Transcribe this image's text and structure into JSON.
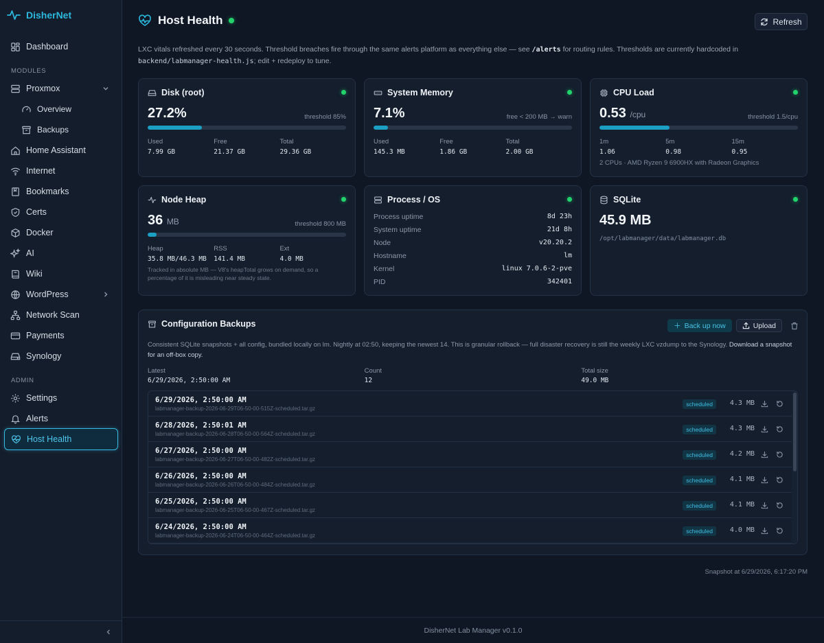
{
  "brand": {
    "name": "DisherNet"
  },
  "sidebar": {
    "top": [
      {
        "label": "Dashboard",
        "icon": "dashboard-icon"
      }
    ],
    "modules_label": "MODULES",
    "modules": [
      {
        "label": "Proxmox",
        "icon": "server-icon",
        "expanded": true
      },
      {
        "label": "Overview",
        "icon": "gauge-icon",
        "sub": true
      },
      {
        "label": "Backups",
        "icon": "archive-icon",
        "sub": true
      },
      {
        "label": "Home Assistant",
        "icon": "home-icon"
      },
      {
        "label": "Internet",
        "icon": "wifi-icon"
      },
      {
        "label": "Bookmarks",
        "icon": "bookmark-icon"
      },
      {
        "label": "Certs",
        "icon": "shield-icon"
      },
      {
        "label": "Docker",
        "icon": "box-icon"
      },
      {
        "label": "AI",
        "icon": "sparkles-icon"
      },
      {
        "label": "Wiki",
        "icon": "book-icon"
      },
      {
        "label": "WordPress",
        "icon": "globe-icon",
        "has_children": true
      },
      {
        "label": "Network Scan",
        "icon": "network-icon"
      },
      {
        "label": "Payments",
        "icon": "credit-card-icon"
      },
      {
        "label": "Synology",
        "icon": "hard-drive-icon"
      }
    ],
    "admin_label": "ADMIN",
    "admin": [
      {
        "label": "Settings",
        "icon": "gear-icon"
      },
      {
        "label": "Alerts",
        "icon": "bell-icon"
      },
      {
        "label": "Host Health",
        "icon": "heart-pulse-icon",
        "active": true
      }
    ]
  },
  "header": {
    "title": "Host Health",
    "status_color": "#22d36b",
    "refresh_label": "Refresh"
  },
  "intro": {
    "part1": "LXC vitals refreshed every 30 seconds. Threshold breaches fire through the same alerts platform as everything else — see ",
    "link": "/alerts",
    "part2": " for routing rules. Thresholds are currently hardcoded in ",
    "code": "backend/labmanager-health.js",
    "part3": "; edit + redeploy to tune."
  },
  "disk": {
    "title": "Disk (root)",
    "value": "27.2%",
    "percent": 27.2,
    "threshold": "threshold 85%",
    "stats": [
      {
        "label": "Used",
        "value": "7.99 GB"
      },
      {
        "label": "Free",
        "value": "21.37 GB"
      },
      {
        "label": "Total",
        "value": "29.36 GB"
      }
    ]
  },
  "memory": {
    "title": "System Memory",
    "value": "7.1%",
    "percent": 7.1,
    "threshold": "free < 200 MB → warn",
    "stats": [
      {
        "label": "Used",
        "value": "145.3 MB"
      },
      {
        "label": "Free",
        "value": "1.86 GB"
      },
      {
        "label": "Total",
        "value": "2.00 GB"
      }
    ]
  },
  "cpu": {
    "title": "CPU Load",
    "value": "0.53",
    "unit": "/cpu",
    "percent": 35.3,
    "threshold": "threshold 1.5/cpu",
    "stats": [
      {
        "label": "1m",
        "value": "1.06"
      },
      {
        "label": "5m",
        "value": "0.98"
      },
      {
        "label": "15m",
        "value": "0.95"
      }
    ],
    "note": "2 CPUs · AMD Ryzen 9 6900HX with Radeon Graphics"
  },
  "heap": {
    "title": "Node Heap",
    "value": "36",
    "unit": "MB",
    "percent": 4.5,
    "threshold": "threshold 800 MB",
    "stats": [
      {
        "label": "Heap",
        "value": "35.8 MB/46.3 MB"
      },
      {
        "label": "RSS",
        "value": "141.4 MB"
      },
      {
        "label": "Ext",
        "value": "4.0 MB"
      }
    ],
    "note": "Tracked in absolute MB — V8's heapTotal grows on demand, so a percentage of it is misleading near steady state."
  },
  "process": {
    "title": "Process / OS",
    "rows": [
      {
        "label": "Process uptime",
        "value": "8d 23h"
      },
      {
        "label": "System uptime",
        "value": "21d 8h"
      },
      {
        "label": "Node",
        "value": "v20.20.2"
      },
      {
        "label": "Hostname",
        "value": "lm"
      },
      {
        "label": "Kernel",
        "value": "linux 7.0.6-2-pve"
      },
      {
        "label": "PID",
        "value": "342401"
      }
    ]
  },
  "sqlite": {
    "title": "SQLite",
    "value": "45.9 MB",
    "path": "/opt/labmanager/data/labmanager.db"
  },
  "backups": {
    "title": "Configuration Backups",
    "backup_now_label": "Back up now",
    "upload_label": "Upload",
    "description": "Consistent SQLite snapshots + all config, bundled locally on lm. Nightly at 02:50, keeping the newest 14. This is granular rollback — full disaster recovery is still the weekly LXC vzdump to the Synology. ",
    "description_link": "Download a snapshot for an off-box copy.",
    "summary": [
      {
        "label": "Latest",
        "value": "6/29/2026, 2:50:00 AM"
      },
      {
        "label": "Count",
        "value": "12"
      },
      {
        "label": "Total size",
        "value": "49.0 MB"
      }
    ],
    "items": [
      {
        "date": "6/29/2026, 2:50:00 AM",
        "file": "labmanager-backup-2026-06-29T06-50-00-515Z-scheduled.tar.gz",
        "type": "scheduled",
        "size": "4.3 MB"
      },
      {
        "date": "6/28/2026, 2:50:01 AM",
        "file": "labmanager-backup-2026-06-28T06-50-00-564Z-scheduled.tar.gz",
        "type": "scheduled",
        "size": "4.3 MB"
      },
      {
        "date": "6/27/2026, 2:50:00 AM",
        "file": "labmanager-backup-2026-06-27T06-50-00-482Z-scheduled.tar.gz",
        "type": "scheduled",
        "size": "4.2 MB"
      },
      {
        "date": "6/26/2026, 2:50:00 AM",
        "file": "labmanager-backup-2026-06-26T06-50-00-484Z-scheduled.tar.gz",
        "type": "scheduled",
        "size": "4.1 MB"
      },
      {
        "date": "6/25/2026, 2:50:00 AM",
        "file": "labmanager-backup-2026-06-25T06-50-00-467Z-scheduled.tar.gz",
        "type": "scheduled",
        "size": "4.1 MB"
      },
      {
        "date": "6/24/2026, 2:50:00 AM",
        "file": "labmanager-backup-2026-06-24T06-50-00-464Z-scheduled.tar.gz",
        "type": "scheduled",
        "size": "4.0 MB"
      }
    ]
  },
  "snapshot": "Snapshot at 6/29/2026, 6:17:20 PM",
  "footer": "DisherNet Lab Manager v0.1.0"
}
